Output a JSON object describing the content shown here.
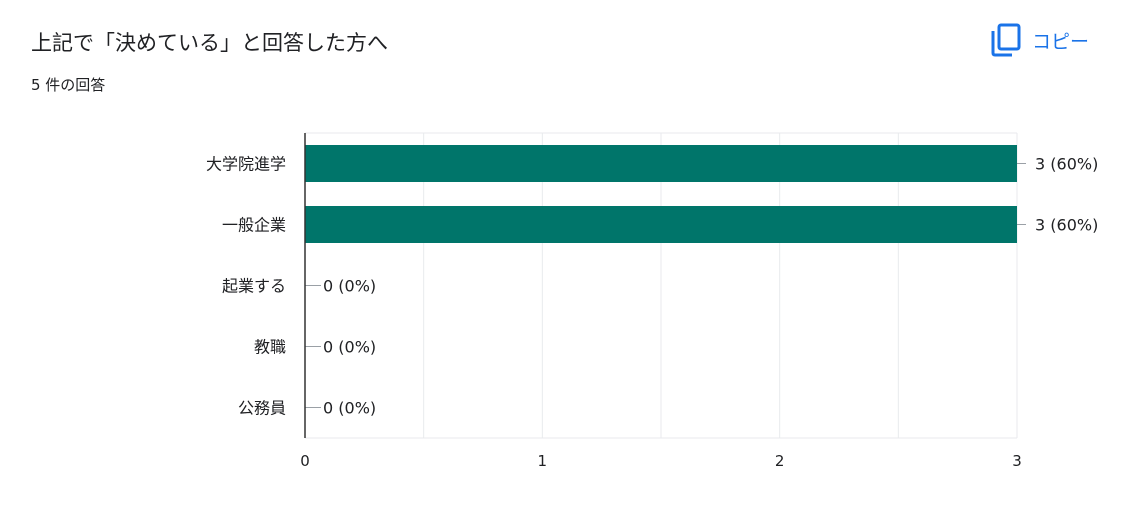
{
  "question": {
    "title": "上記で「決めている」と回答した方へ",
    "response_count": "5 件の回答"
  },
  "copy_button": {
    "label": "コピー",
    "icon": "copy-icon",
    "color": "#1a73e8"
  },
  "colors": {
    "bar": "#00756a",
    "grid": "#e8eaed",
    "axis": "#333333",
    "text": "#202124"
  },
  "chart_data": {
    "type": "bar",
    "orientation": "horizontal",
    "categories": [
      "大学院進学",
      "一般企業",
      "起業する",
      "教職",
      "公務員"
    ],
    "values": [
      3,
      3,
      0,
      0,
      0
    ],
    "data_labels": [
      "3 (60%)",
      "3 (60%)",
      "0 (0%)",
      "0 (0%)",
      "0 (0%)"
    ],
    "xlim": [
      0,
      3
    ],
    "xticks": [
      "0",
      "1",
      "2",
      "3"
    ],
    "grid": true
  }
}
